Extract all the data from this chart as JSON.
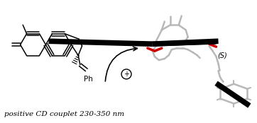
{
  "background_color": "#ffffff",
  "text_bottom": "positive CD couplet 230-350 nm",
  "text_s": "(S)",
  "text_ph": "Ph",
  "arrow_color": "#000000",
  "figsize": [
    3.62,
    1.74
  ],
  "dpi": 100,
  "bond_lw": 1.1,
  "red_color": "#cc0000",
  "gray_color": "#b8b8b8",
  "dark_gray": "#888888",
  "black": "#000000",
  "light_gray": "#cccccc"
}
